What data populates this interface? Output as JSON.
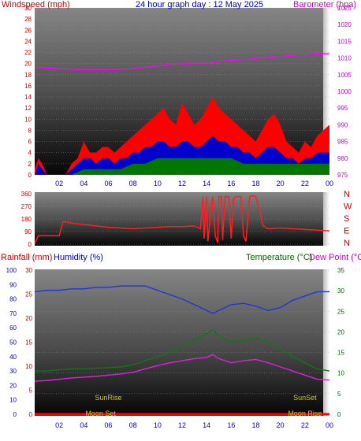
{
  "colors": {
    "wind": "#ff0000",
    "gust": "#ff0000",
    "avg_wind": "#0000cc",
    "wind_low": "#007700",
    "barometer": "#ff00ff",
    "direction": "#ff2020",
    "humidity": "#2233dd",
    "temperature": "#117711",
    "dewpoint": "#dd22dd",
    "rainfall": "#ff0000",
    "title": "#0000cc",
    "axis_red": "#cc0000",
    "axis_blue": "#0000cc",
    "axis_green": "#006600",
    "axis_magenta": "#cc00cc",
    "astro": "#cccc00"
  },
  "chart_data": [
    {
      "type": "area",
      "title": "24 hour graph day : 12 May 2025",
      "left_axis_title": "Windspeed (mph)",
      "right_axis_title": "Barometer (hpa)",
      "x_ticks": [
        "02",
        "04",
        "06",
        "08",
        "10",
        "12",
        "14",
        "16",
        "18",
        "20",
        "22",
        "00"
      ],
      "x_range": [
        0,
        24
      ],
      "y_left_range": [
        0,
        30
      ],
      "y_left_ticks": [
        0,
        2,
        4,
        6,
        8,
        10,
        12,
        14,
        16,
        18,
        20,
        22,
        24,
        26,
        28,
        30
      ],
      "y_right_range": [
        975,
        1025
      ],
      "y_right_ticks": [
        975,
        980,
        985,
        990,
        995,
        1000,
        1005,
        1010,
        1015,
        1020,
        1025
      ],
      "series": [
        {
          "name": "Wind Gust",
          "axis": "left",
          "x": [
            0,
            0.3,
            0.6,
            1.0,
            1.5,
            2.0,
            2.5,
            3.0,
            3.5,
            4.0,
            4.5,
            5.0,
            5.5,
            6.0,
            6.5,
            7.0,
            7.5,
            8.0,
            8.5,
            9.0,
            9.5,
            10.0,
            10.5,
            11.0,
            11.5,
            12.0,
            12.5,
            13.0,
            13.5,
            14.0,
            14.5,
            15.0,
            15.5,
            16.0,
            16.5,
            17.0,
            17.5,
            18.0,
            18.5,
            19.0,
            19.5,
            20.0,
            20.5,
            21.0,
            21.5,
            22.0,
            22.5,
            23.0,
            23.5,
            24.0
          ],
          "values": [
            1,
            3,
            2,
            0,
            0,
            0,
            0,
            2,
            3,
            6,
            4,
            4,
            5,
            5,
            4,
            5,
            6,
            7,
            8,
            9,
            10,
            11,
            12,
            10,
            9,
            13,
            11,
            9,
            10,
            12,
            14,
            12,
            11,
            10,
            9,
            8,
            7,
            6,
            8,
            10,
            11,
            9,
            6,
            5,
            4,
            6,
            5,
            7,
            8,
            9
          ]
        },
        {
          "name": "Wind Speed",
          "axis": "left",
          "x": [
            0,
            0.3,
            0.6,
            1.0,
            1.5,
            2.0,
            2.5,
            3.0,
            3.5,
            4.0,
            4.5,
            5.0,
            5.5,
            6.0,
            6.5,
            7.0,
            7.5,
            8.0,
            8.5,
            9.0,
            9.5,
            10.0,
            10.5,
            11.0,
            11.5,
            12.0,
            12.5,
            13.0,
            13.5,
            14.0,
            14.5,
            15.0,
            15.5,
            16.0,
            16.5,
            17.0,
            17.5,
            18.0,
            18.5,
            19.0,
            19.5,
            20.0,
            20.5,
            21.0,
            21.5,
            22.0,
            22.5,
            23.0,
            23.5,
            24.0
          ],
          "values": [
            0,
            2,
            1,
            0,
            0,
            0,
            0,
            1,
            2,
            3,
            3,
            2,
            3,
            3,
            2,
            3,
            3,
            4,
            4,
            5,
            5,
            6,
            6,
            5,
            5,
            6,
            6,
            5,
            5,
            6,
            7,
            6,
            6,
            5,
            5,
            4,
            4,
            3,
            4,
            5,
            5,
            4,
            3,
            3,
            2,
            3,
            3,
            4,
            4,
            4
          ]
        },
        {
          "name": "Wind Low",
          "axis": "left",
          "x": [
            0,
            1,
            2,
            3,
            4,
            5,
            6,
            7,
            8,
            9,
            10,
            11,
            12,
            13,
            14,
            15,
            16,
            17,
            18,
            19,
            20,
            21,
            22,
            23,
            24
          ],
          "values": [
            0,
            0,
            0,
            0,
            1,
            1,
            1,
            1,
            2,
            2,
            3,
            3,
            3,
            3,
            3,
            3,
            3,
            2,
            2,
            2,
            2,
            2,
            2,
            2,
            2
          ]
        },
        {
          "name": "Barometer",
          "axis": "right",
          "x": [
            0,
            1,
            2,
            3,
            4,
            5,
            6,
            7,
            8,
            9,
            10,
            11,
            12,
            13,
            14,
            15,
            16,
            17,
            18,
            19,
            20,
            21,
            22,
            23,
            24
          ],
          "values": [
            1007.2,
            1007.0,
            1006.8,
            1006.6,
            1006.5,
            1006.5,
            1006.5,
            1006.6,
            1006.8,
            1007.2,
            1007.6,
            1008.0,
            1008.3,
            1008.5,
            1008.5,
            1009.0,
            1009.3,
            1009.5,
            1009.8,
            1010.2,
            1010.5,
            1010.8,
            1011.0,
            1011.2,
            1011.3
          ]
        }
      ]
    },
    {
      "type": "line",
      "right_labels": [
        "N",
        "W",
        "S",
        "E",
        "N"
      ],
      "x_range": [
        0,
        24
      ],
      "y_range": [
        0,
        360
      ],
      "y_ticks": [
        0,
        90,
        180,
        270,
        360
      ],
      "series": [
        {
          "name": "Wind Direction",
          "x": [
            0,
            0.3,
            1.0,
            2.0,
            2.3,
            2.6,
            3.0,
            4.0,
            5.0,
            6.0,
            7.0,
            8.0,
            9.0,
            10.0,
            11.0,
            12.0,
            13.0,
            13.5,
            13.7,
            13.8,
            14.0,
            14.1,
            14.3,
            14.5,
            14.7,
            14.9,
            15.0,
            15.2,
            15.3,
            15.5,
            15.8,
            16.0,
            16.2,
            16.4,
            16.6,
            16.8,
            17.0,
            17.2,
            17.5,
            17.8,
            18.0,
            18.3,
            18.6,
            19.0,
            20.0,
            21.0,
            22.0,
            23.0,
            24.0
          ],
          "values": [
            0,
            60,
            60,
            60,
            160,
            160,
            150,
            140,
            130,
            120,
            115,
            110,
            115,
            120,
            125,
            125,
            130,
            110,
            340,
            40,
            340,
            20,
            200,
            340,
            60,
            10,
            340,
            340,
            30,
            340,
            340,
            40,
            330,
            340,
            340,
            340,
            60,
            20,
            340,
            345,
            340,
            250,
            130,
            110,
            115,
            110,
            105,
            100,
            95
          ]
        }
      ]
    },
    {
      "type": "line",
      "left_axis_title": "Rainfall (mm)",
      "humidity_title": "Humidity (%)",
      "right_axis_title": "Temperature (°C)",
      "dewpoint_title": "Dew Point (°C)",
      "x_ticks": [
        "02",
        "04",
        "06",
        "08",
        "10",
        "12",
        "14",
        "16",
        "18",
        "20",
        "22",
        "00"
      ],
      "x_range": [
        0,
        24
      ],
      "rain_range": [
        0,
        30
      ],
      "rain_ticks": [
        0,
        5,
        10,
        15,
        20,
        25,
        30
      ],
      "humidity_range": [
        0,
        100
      ],
      "humidity_ticks": [
        0,
        10,
        20,
        30,
        40,
        50,
        60,
        70,
        80,
        90,
        100
      ],
      "temp_range": [
        0,
        35
      ],
      "temp_ticks": [
        0,
        5,
        10,
        15,
        20,
        25,
        30,
        35
      ],
      "sunrise_label": "SunRise",
      "sunset_label": "SunSet",
      "moonset_label": "Moon Set",
      "moonrise_label": "Moon Rise",
      "sunrise_x": 6.0,
      "sunset_x": 22.0,
      "moonset_x": 6.6,
      "moonrise_x": 22.0,
      "series": [
        {
          "name": "Humidity",
          "axis": "humidity",
          "x": [
            0,
            1,
            2,
            3,
            4,
            5,
            6,
            7,
            8,
            9,
            10,
            11,
            12,
            13,
            14,
            14.5,
            15,
            16,
            17,
            18,
            19,
            20,
            21,
            22,
            23,
            24
          ],
          "values": [
            85,
            86,
            86,
            87,
            87,
            88,
            88,
            89,
            89,
            89,
            86,
            83,
            80,
            76,
            72,
            70,
            72,
            76,
            77,
            75,
            72,
            74,
            79,
            82,
            85,
            85
          ]
        },
        {
          "name": "Temperature",
          "axis": "temp",
          "x": [
            0,
            1,
            2,
            3,
            4,
            5,
            6,
            7,
            8,
            9,
            10,
            11,
            12,
            13,
            14,
            14.5,
            15,
            16,
            17,
            18,
            19,
            20,
            21,
            22,
            23,
            24
          ],
          "values": [
            10.5,
            10.5,
            10.8,
            11.0,
            11.0,
            11.2,
            11.3,
            11.5,
            12.0,
            13.0,
            14.0,
            15.0,
            16.5,
            18.0,
            19.5,
            20.5,
            19.0,
            17.5,
            18.0,
            18.5,
            17.5,
            16.0,
            14.0,
            12.5,
            11.0,
            10.5
          ]
        },
        {
          "name": "Dew Point",
          "axis": "temp",
          "x": [
            0,
            1,
            2,
            3,
            4,
            5,
            6,
            7,
            8,
            9,
            10,
            11,
            12,
            13,
            14,
            14.5,
            15,
            16,
            17,
            18,
            19,
            20,
            21,
            22,
            23,
            24
          ],
          "values": [
            8.0,
            8.2,
            8.5,
            8.8,
            9.0,
            9.2,
            9.5,
            9.8,
            10.2,
            11.0,
            11.8,
            12.5,
            13.0,
            13.5,
            13.8,
            14.5,
            13.5,
            12.5,
            13.0,
            13.3,
            12.5,
            11.5,
            10.5,
            9.5,
            8.5,
            8.3
          ]
        },
        {
          "name": "Rainfall",
          "axis": "rain",
          "x": [
            0,
            24
          ],
          "values": [
            0,
            0
          ]
        }
      ]
    }
  ]
}
